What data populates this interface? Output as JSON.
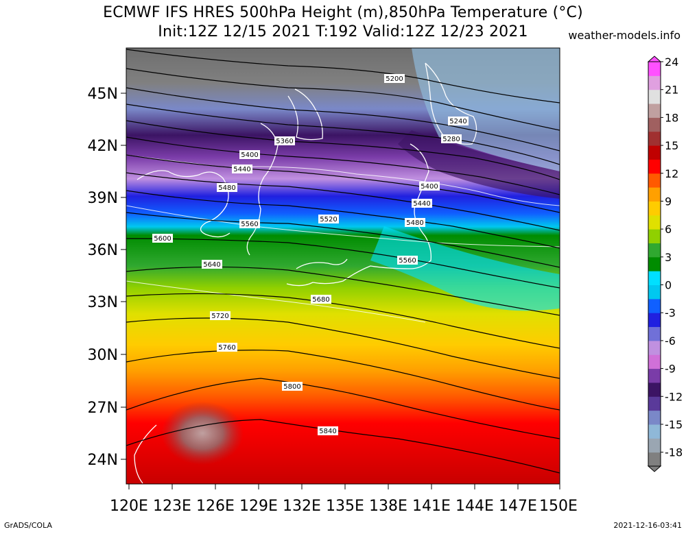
{
  "title": {
    "line1": "ECMWF IFS HRES 500hPa Height (m),850hPa Temperature (°C)",
    "line2": "Init:12Z 12/15 2021 T:192 Valid:12Z 12/23 2021"
  },
  "brand": "weather-models.info",
  "footer": {
    "left": "GrADS/COLA",
    "right": "2021-12-16-03:41"
  },
  "map": {
    "lat_labels": [
      "45N",
      "42N",
      "39N",
      "36N",
      "33N",
      "30N",
      "27N",
      "24N"
    ],
    "lon_labels": [
      "120E",
      "123E",
      "126E",
      "129E",
      "132E",
      "135E",
      "138E",
      "141E",
      "144E",
      "147E",
      "150E"
    ],
    "contours": [
      {
        "label": "5200"
      },
      {
        "label": "5240"
      },
      {
        "label": "5280"
      },
      {
        "label": "5360"
      },
      {
        "label": "5400"
      },
      {
        "label": "5400"
      },
      {
        "label": "5440"
      },
      {
        "label": "5440"
      },
      {
        "label": "5480"
      },
      {
        "label": "5480"
      },
      {
        "label": "5520"
      },
      {
        "label": "5560"
      },
      {
        "label": "5560"
      },
      {
        "label": "5600"
      },
      {
        "label": "5640"
      },
      {
        "label": "5680"
      },
      {
        "label": "5720"
      },
      {
        "label": "5760"
      },
      {
        "label": "5800"
      },
      {
        "label": "5840"
      }
    ]
  },
  "colorbar": {
    "labels": [
      "24",
      "21",
      "18",
      "15",
      "12",
      "9",
      "6",
      "3",
      "0",
      "-3",
      "-6",
      "-9",
      "-12",
      "-15",
      "-18"
    ],
    "colors": [
      "#808080",
      "#9aa6b2",
      "#8fb8d8",
      "#7a88c8",
      "#5a3a9a",
      "#3c1464",
      "#7a3ca8",
      "#d070d8",
      "#c090e0",
      "#7070d8",
      "#2020e0",
      "#1060ff",
      "#00c8f0",
      "#00e0ff",
      "#008c00",
      "#30a830",
      "#90d000",
      "#e0e000",
      "#ffcc00",
      "#ffa000",
      "#ff5a00",
      "#ff0000",
      "#c00000",
      "#a03030",
      "#a06060",
      "#c0a0a0",
      "#e0e0e0",
      "#e0a0e0",
      "#ff50ff"
    ]
  }
}
